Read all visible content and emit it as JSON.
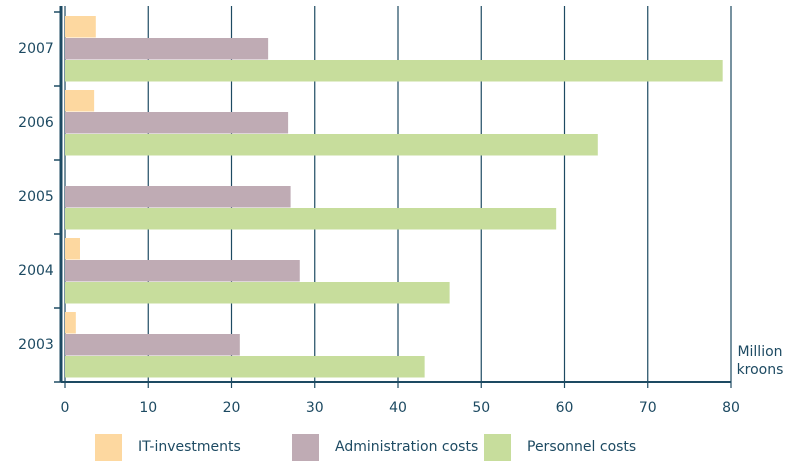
{
  "chart_data": {
    "type": "bar",
    "orientation": "horizontal",
    "categories": [
      "2007",
      "2006",
      "2005",
      "2004",
      "2003"
    ],
    "series": [
      {
        "name": "IT-investments",
        "color": "#fdd8a0",
        "values": [
          3.7,
          3.5,
          0,
          1.8,
          1.3
        ]
      },
      {
        "name": "Administration costs",
        "color": "#bfabb4",
        "values": [
          24.4,
          26.8,
          27.1,
          28.2,
          21.0
        ]
      },
      {
        "name": "Personnel costs",
        "color": "#c7dd9c",
        "values": [
          79.0,
          64.0,
          59.0,
          46.2,
          43.2
        ]
      }
    ],
    "x_label": "Million kroons",
    "xlim": [
      0,
      80
    ],
    "xticks": [
      0,
      10,
      20,
      30,
      40,
      50,
      60,
      70,
      80
    ],
    "grid": true,
    "axis_color": "#1d4a62",
    "legend": "bottom"
  }
}
